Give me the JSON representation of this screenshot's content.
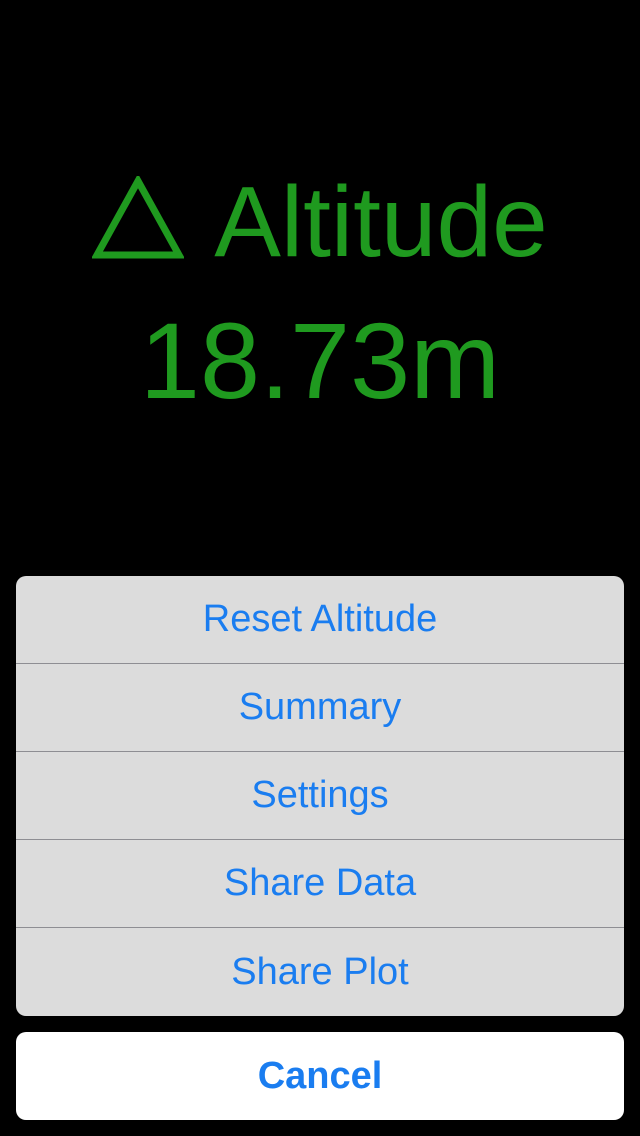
{
  "readout": {
    "icon": "delta-triangle-icon",
    "title": "Altitude",
    "value": "18.73m",
    "color": "#1f9a1f"
  },
  "action_sheet": {
    "items": [
      {
        "label": "Reset Altitude"
      },
      {
        "label": "Summary"
      },
      {
        "label": "Settings"
      },
      {
        "label": "Share Data"
      },
      {
        "label": "Share Plot"
      }
    ],
    "cancel_label": "Cancel",
    "accent_color": "#1a7df0"
  }
}
